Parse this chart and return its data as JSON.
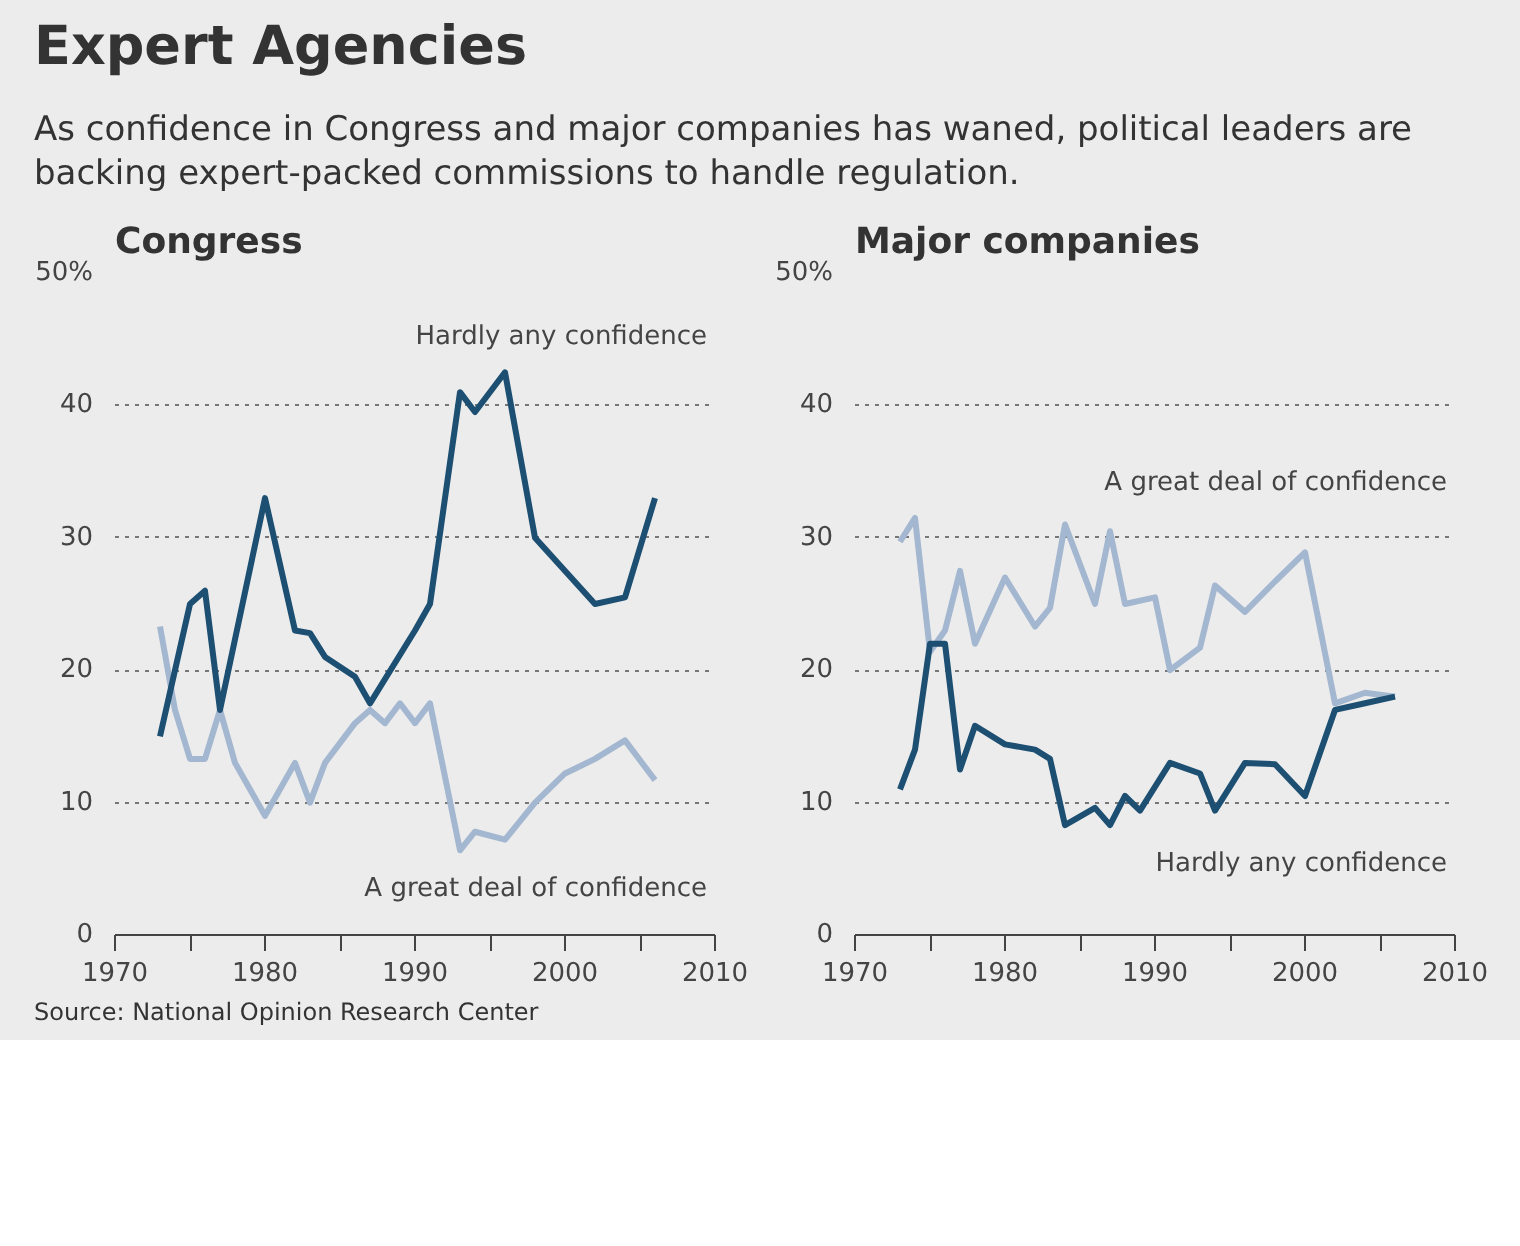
{
  "chart_data": [
    {
      "type": "other",
      "title": "Expert Agencies",
      "subtitle": "As confidence in Congress and major companies has waned, political leaders are backing expert-packed commissions to handle regulation.",
      "annotations": [
        "Source: National Opinion Research Center"
      ]
    },
    {
      "type": "line",
      "title": "Congress",
      "xlim": [
        1970,
        2010
      ],
      "ylim": [
        0,
        50
      ],
      "xticks": [
        1970,
        {
          "value": 1975,
          "label": null
        },
        1980,
        {
          "value": 1985,
          "label": null
        },
        1990,
        {
          "value": 1995,
          "label": null
        },
        2000,
        {
          "value": 2005,
          "label": null
        },
        2010
      ],
      "yticks": [
        0,
        10,
        20,
        30,
        40,
        {
          "value": 50,
          "label": "50%"
        }
      ],
      "grid": "y",
      "legend": false,
      "series": [
        {
          "name": "A great deal of confidence",
          "color": "#a3b7d0",
          "x": [
            1973,
            1974,
            1975,
            1976,
            1977,
            1978,
            1980,
            1982,
            1983,
            1984,
            1986,
            1987,
            1988,
            1989,
            1990,
            1991,
            1993,
            1994,
            1996,
            1998,
            2000,
            2002,
            2004,
            2006
          ],
          "values": [
            23.3,
            17,
            13.3,
            13.3,
            17,
            13,
            9,
            13,
            10,
            13,
            16,
            17,
            16,
            17.5,
            16,
            17.5,
            6.4,
            7.8,
            7.2,
            10,
            12.2,
            13.3,
            14.7,
            11.7
          ]
        },
        {
          "name": "Hardly any confidence",
          "color": "#1c4f72",
          "x": [
            1973,
            1975,
            1976,
            1977,
            1980,
            1982,
            1983,
            1984,
            1986,
            1987,
            1990,
            1991,
            1993,
            1994,
            1996,
            1998,
            2002,
            2004,
            2006
          ],
          "values": [
            15,
            25,
            26,
            17,
            33,
            23,
            22.8,
            21,
            19.5,
            17.5,
            23,
            25,
            41,
            39.5,
            42.5,
            30,
            25,
            25.5,
            33
          ]
        }
      ]
    },
    {
      "type": "line",
      "title": "Major companies",
      "xlim": [
        1970,
        2010
      ],
      "ylim": [
        0,
        50
      ],
      "xticks": [
        1970,
        {
          "value": 1975,
          "label": null
        },
        1980,
        {
          "value": 1985,
          "label": null
        },
        1990,
        {
          "value": 1995,
          "label": null
        },
        2000,
        {
          "value": 2005,
          "label": null
        },
        2010
      ],
      "yticks": [
        0,
        10,
        20,
        30,
        40,
        {
          "value": 50,
          "label": "50%"
        }
      ],
      "grid": "y",
      "legend": false,
      "series": [
        {
          "name": "A great deal of confidence",
          "color": "#a3b7d0",
          "x": [
            1973,
            1974,
            1975,
            1976,
            1977,
            1978,
            1980,
            1982,
            1983,
            1984,
            1986,
            1987,
            1988,
            1990,
            1991,
            1993,
            1994,
            1996,
            1998,
            2000,
            2002,
            2004,
            2006
          ],
          "values": [
            29.7,
            31.5,
            21.4,
            23,
            27.5,
            22,
            27,
            23.3,
            24.7,
            31,
            25,
            30.5,
            25,
            25.5,
            20,
            21.7,
            26.4,
            24.4,
            26.7,
            28.9,
            17.5,
            18.3,
            18
          ]
        },
        {
          "name": "Hardly any confidence",
          "color": "#1c4f72",
          "x": [
            1973,
            1974,
            1975,
            1976,
            1977,
            1978,
            1980,
            1982,
            1983,
            1984,
            1986,
            1987,
            1988,
            1989,
            1991,
            1993,
            1994,
            1996,
            1998,
            2000,
            2002,
            2004,
            2006
          ],
          "values": [
            11,
            14,
            22,
            22,
            12.5,
            15.8,
            14.4,
            14,
            13.3,
            8.3,
            9.6,
            8.3,
            10.5,
            9.4,
            13,
            12.2,
            9.4,
            13,
            12.9,
            10.5,
            17,
            17.5,
            18
          ]
        }
      ]
    }
  ]
}
